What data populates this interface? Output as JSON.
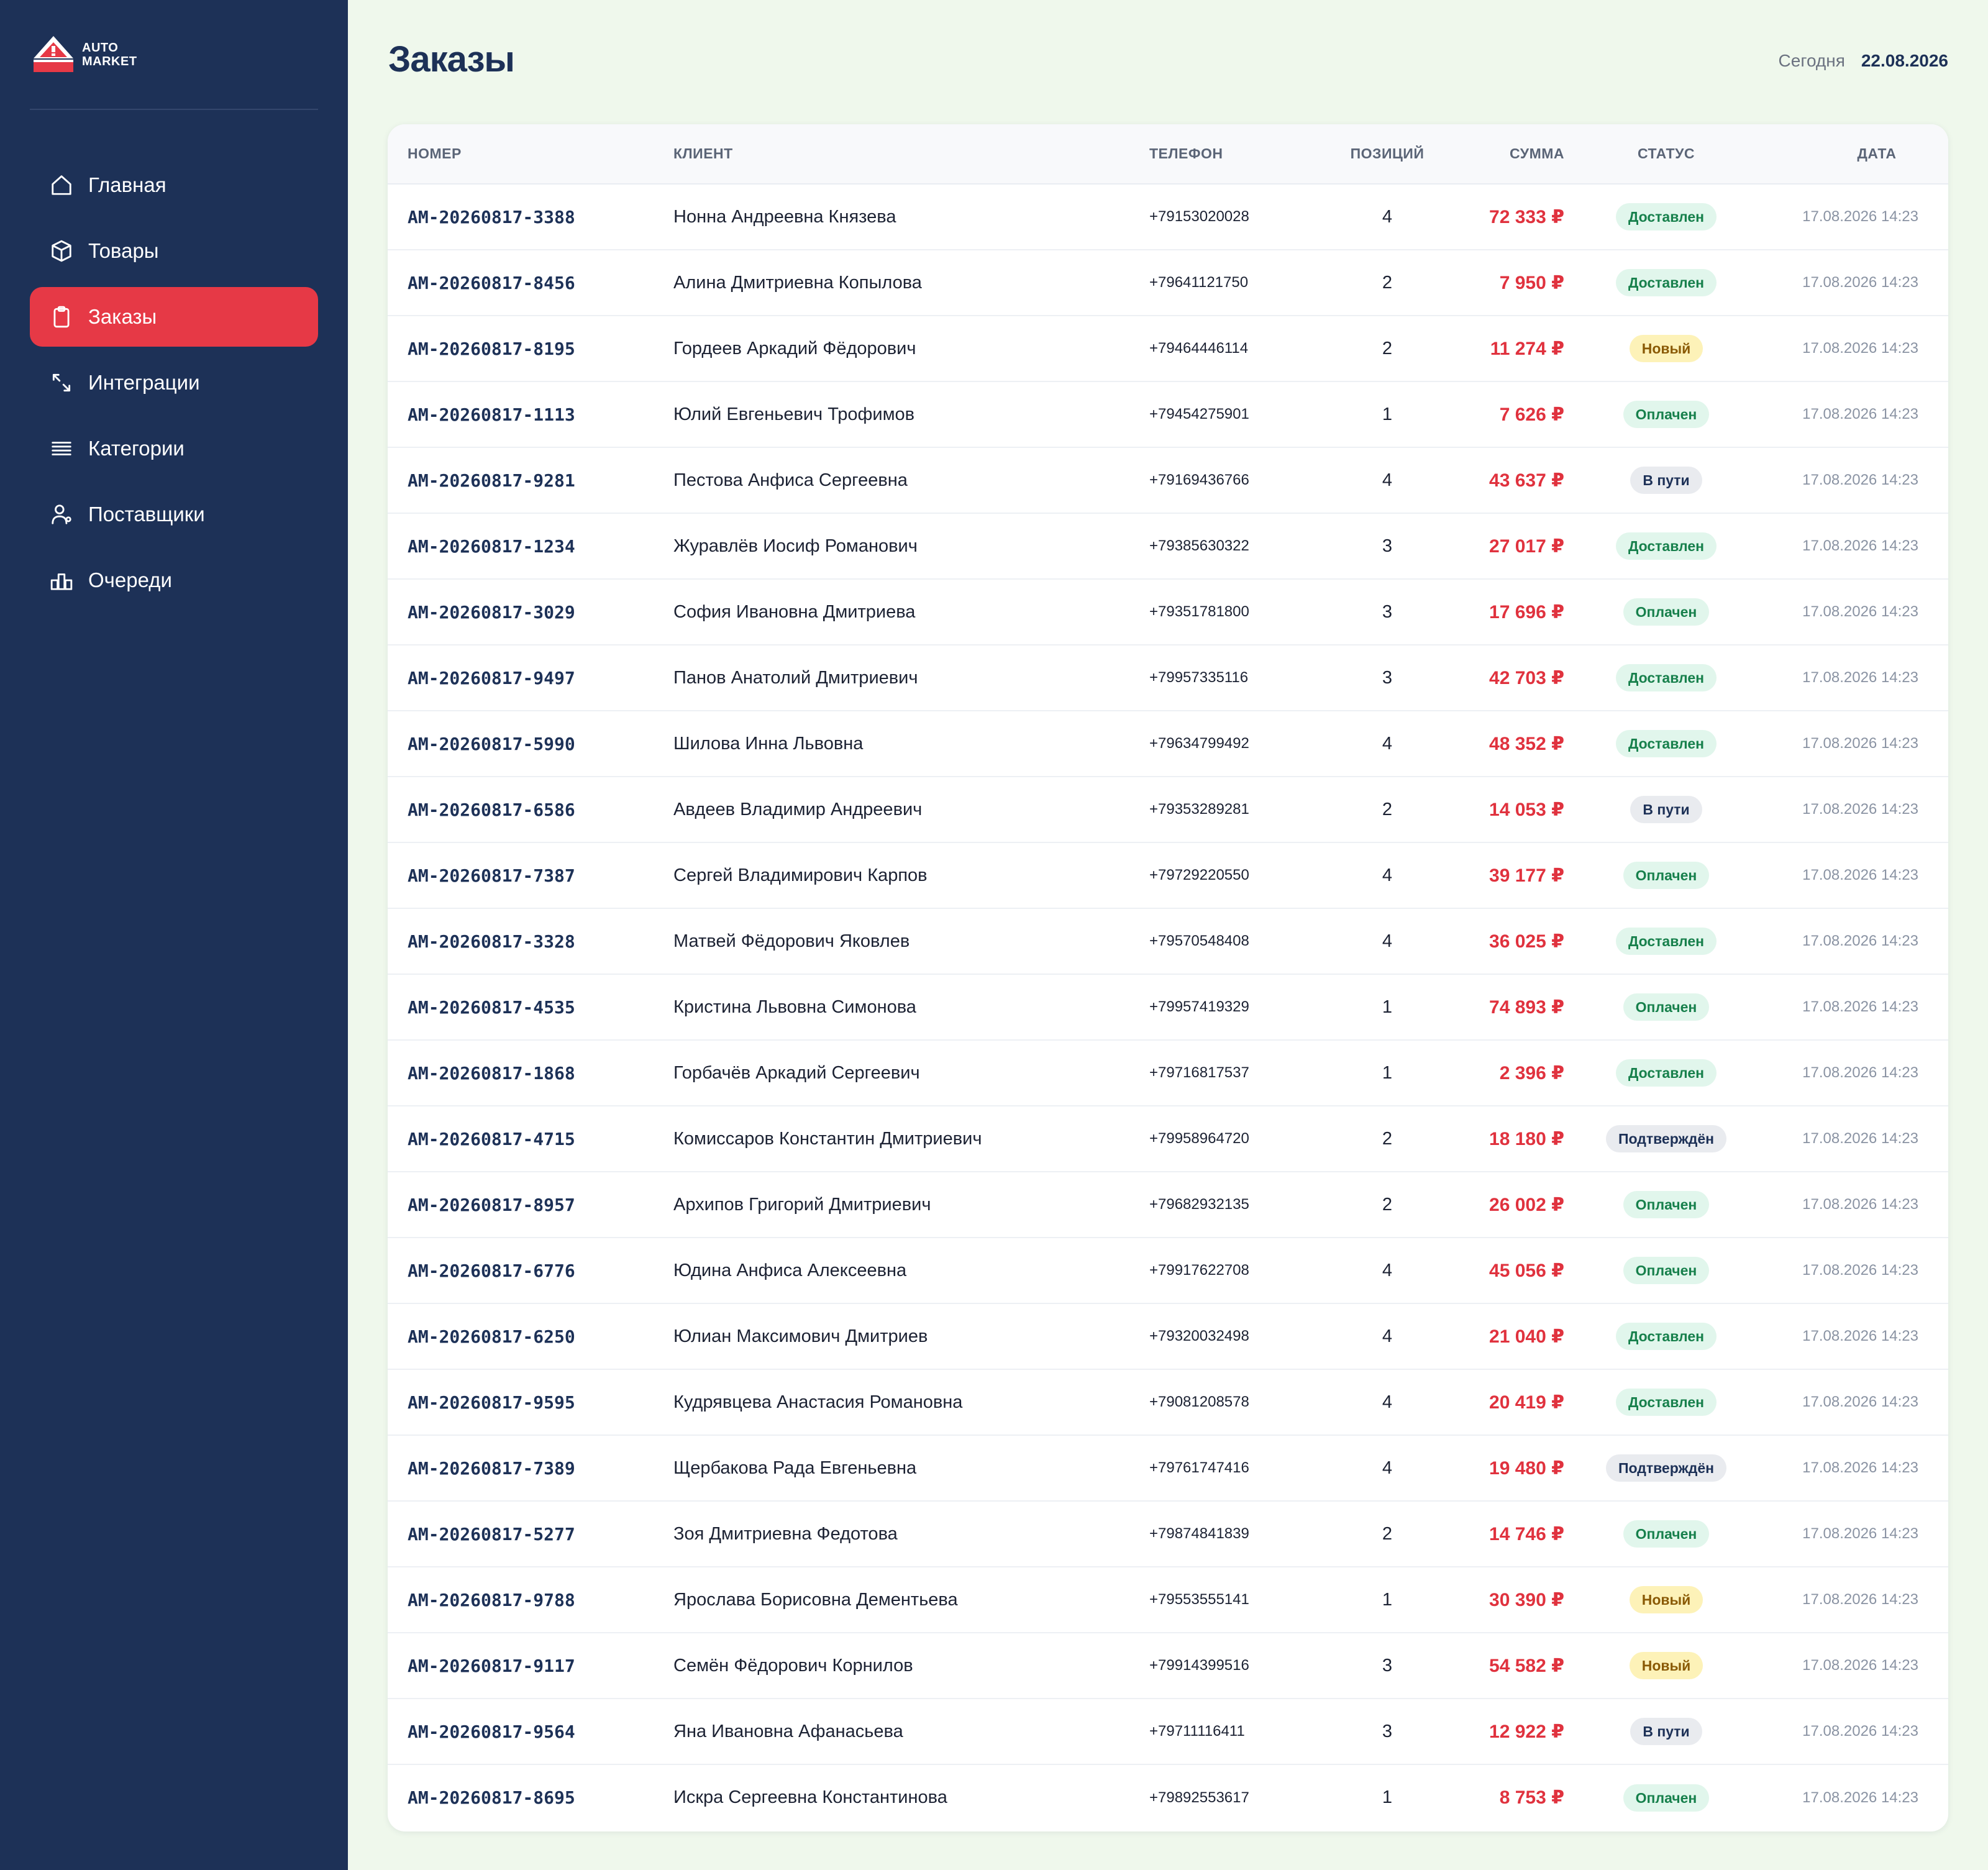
{
  "brand": {
    "line1": "AUTO",
    "line2": "MARKET",
    "accent": "#e63946",
    "sidebar_bg": "#1d3157"
  },
  "nav": [
    {
      "label": "Главная",
      "icon": "home-icon",
      "active": false
    },
    {
      "label": "Товары",
      "icon": "box-icon",
      "active": false
    },
    {
      "label": "Заказы",
      "icon": "clipboard-icon",
      "active": true
    },
    {
      "label": "Интеграции",
      "icon": "arrows-icon",
      "active": false
    },
    {
      "label": "Категории",
      "icon": "list-icon",
      "active": false
    },
    {
      "label": "Поставщики",
      "icon": "users-icon",
      "active": false
    },
    {
      "label": "Очереди",
      "icon": "queue-icon",
      "active": false
    }
  ],
  "header": {
    "title": "Заказы",
    "today_label": "Сегодня",
    "today_value": "22.08.2026"
  },
  "table": {
    "columns": [
      "Номер",
      "Клиент",
      "Телефон",
      "Позиций",
      "Сумма",
      "Статус",
      "Дата"
    ],
    "status_colors": {
      "Доставлен": "#17804c",
      "Оплачен": "#17804c",
      "Новый": "#8a5a05",
      "В пути": "#1d3157",
      "Подтверждён": "#1d3157"
    },
    "rows": [
      {
        "number": "AM-20260817-3388",
        "client": "Нонна Андреевна Князева",
        "phone": "+79153020028",
        "positions": "4",
        "sum": "72 333 ₽",
        "status": "Доставлен",
        "date": "17.08.2026 14:23"
      },
      {
        "number": "AM-20260817-8456",
        "client": "Алина Дмитриевна Копылова",
        "phone": "+79641121750",
        "positions": "2",
        "sum": "7 950 ₽",
        "status": "Доставлен",
        "date": "17.08.2026 14:23"
      },
      {
        "number": "AM-20260817-8195",
        "client": "Гордеев Аркадий Фёдорович",
        "phone": "+79464446114",
        "positions": "2",
        "sum": "11 274 ₽",
        "status": "Новый",
        "date": "17.08.2026 14:23"
      },
      {
        "number": "AM-20260817-1113",
        "client": "Юлий Евгеньевич Трофимов",
        "phone": "+79454275901",
        "positions": "1",
        "sum": "7 626 ₽",
        "status": "Оплачен",
        "date": "17.08.2026 14:23"
      },
      {
        "number": "AM-20260817-9281",
        "client": "Пестова Анфиса Сергеевна",
        "phone": "+79169436766",
        "positions": "4",
        "sum": "43 637 ₽",
        "status": "В пути",
        "date": "17.08.2026 14:23"
      },
      {
        "number": "AM-20260817-1234",
        "client": "Журавлёв Иосиф Романович",
        "phone": "+79385630322",
        "positions": "3",
        "sum": "27 017 ₽",
        "status": "Доставлен",
        "date": "17.08.2026 14:23"
      },
      {
        "number": "AM-20260817-3029",
        "client": "София Ивановна Дмитриева",
        "phone": "+79351781800",
        "positions": "3",
        "sum": "17 696 ₽",
        "status": "Оплачен",
        "date": "17.08.2026 14:23"
      },
      {
        "number": "AM-20260817-9497",
        "client": "Панов Анатолий Дмитриевич",
        "phone": "+79957335116",
        "positions": "3",
        "sum": "42 703 ₽",
        "status": "Доставлен",
        "date": "17.08.2026 14:23"
      },
      {
        "number": "AM-20260817-5990",
        "client": "Шилова Инна Львовна",
        "phone": "+79634799492",
        "positions": "4",
        "sum": "48 352 ₽",
        "status": "Доставлен",
        "date": "17.08.2026 14:23"
      },
      {
        "number": "AM-20260817-6586",
        "client": "Авдеев Владимир Андреевич",
        "phone": "+79353289281",
        "positions": "2",
        "sum": "14 053 ₽",
        "status": "В пути",
        "date": "17.08.2026 14:23"
      },
      {
        "number": "AM-20260817-7387",
        "client": "Сергей Владимирович Карпов",
        "phone": "+79729220550",
        "positions": "4",
        "sum": "39 177 ₽",
        "status": "Оплачен",
        "date": "17.08.2026 14:23"
      },
      {
        "number": "AM-20260817-3328",
        "client": "Матвей Фёдорович Яковлев",
        "phone": "+79570548408",
        "positions": "4",
        "sum": "36 025 ₽",
        "status": "Доставлен",
        "date": "17.08.2026 14:23"
      },
      {
        "number": "AM-20260817-4535",
        "client": "Кристина Львовна Симонова",
        "phone": "+79957419329",
        "positions": "1",
        "sum": "74 893 ₽",
        "status": "Оплачен",
        "date": "17.08.2026 14:23"
      },
      {
        "number": "AM-20260817-1868",
        "client": "Горбачёв Аркадий Сергеевич",
        "phone": "+79716817537",
        "positions": "1",
        "sum": "2 396 ₽",
        "status": "Доставлен",
        "date": "17.08.2026 14:23"
      },
      {
        "number": "AM-20260817-4715",
        "client": "Комиссаров Константин Дмитриевич",
        "phone": "+79958964720",
        "positions": "2",
        "sum": "18 180 ₽",
        "status": "Подтверждён",
        "date": "17.08.2026 14:23"
      },
      {
        "number": "AM-20260817-8957",
        "client": "Архипов Григорий Дмитриевич",
        "phone": "+79682932135",
        "positions": "2",
        "sum": "26 002 ₽",
        "status": "Оплачен",
        "date": "17.08.2026 14:23"
      },
      {
        "number": "AM-20260817-6776",
        "client": "Юдина Анфиса Алексеевна",
        "phone": "+79917622708",
        "positions": "4",
        "sum": "45 056 ₽",
        "status": "Оплачен",
        "date": "17.08.2026 14:23"
      },
      {
        "number": "AM-20260817-6250",
        "client": "Юлиан Максимович Дмитриев",
        "phone": "+79320032498",
        "positions": "4",
        "sum": "21 040 ₽",
        "status": "Доставлен",
        "date": "17.08.2026 14:23"
      },
      {
        "number": "AM-20260817-9595",
        "client": "Кудрявцева Анастасия Романовна",
        "phone": "+79081208578",
        "positions": "4",
        "sum": "20 419 ₽",
        "status": "Доставлен",
        "date": "17.08.2026 14:23"
      },
      {
        "number": "AM-20260817-7389",
        "client": "Щербакова Рада Евгеньевна",
        "phone": "+79761747416",
        "positions": "4",
        "sum": "19 480 ₽",
        "status": "Подтверждён",
        "date": "17.08.2026 14:23"
      },
      {
        "number": "AM-20260817-5277",
        "client": "Зоя Дмитриевна Федотова",
        "phone": "+79874841839",
        "positions": "2",
        "sum": "14 746 ₽",
        "status": "Оплачен",
        "date": "17.08.2026 14:23"
      },
      {
        "number": "AM-20260817-9788",
        "client": "Ярослава Борисовна Дементьева",
        "phone": "+79553555141",
        "positions": "1",
        "sum": "30 390 ₽",
        "status": "Новый",
        "date": "17.08.2026 14:23"
      },
      {
        "number": "AM-20260817-9117",
        "client": "Семён Фёдорович Корнилов",
        "phone": "+79914399516",
        "positions": "3",
        "sum": "54 582 ₽",
        "status": "Новый",
        "date": "17.08.2026 14:23"
      },
      {
        "number": "AM-20260817-9564",
        "client": "Яна Ивановна Афанасьева",
        "phone": "+79711116411",
        "positions": "3",
        "sum": "12 922 ₽",
        "status": "В пути",
        "date": "17.08.2026 14:23"
      },
      {
        "number": "AM-20260817-8695",
        "client": "Искра Сергеевна Константинова",
        "phone": "+79892553617",
        "positions": "1",
        "sum": "8 753 ₽",
        "status": "Оплачен",
        "date": "17.08.2026 14:23"
      }
    ]
  }
}
